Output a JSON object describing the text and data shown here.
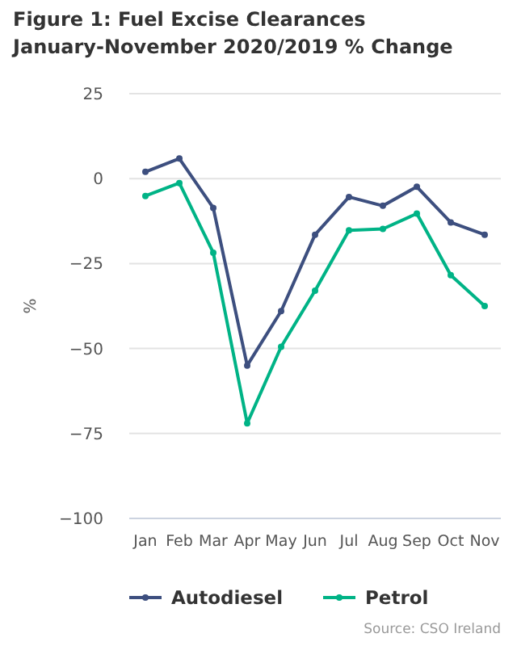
{
  "chart_data": {
    "type": "line",
    "title": "Figure 1: Fuel Excise Clearances January-November 2020/2019 % Change",
    "ylabel": "%",
    "categories": [
      "Jan",
      "Feb",
      "Mar",
      "Apr",
      "May",
      "Jun",
      "Jul",
      "Aug",
      "Sep",
      "Oct",
      "Nov"
    ],
    "series": [
      {
        "name": "Autodiesel",
        "color": "#3d4f7f",
        "values": [
          2,
          5.9,
          -8.6,
          -55,
          -39,
          -16.5,
          -5.4,
          -8,
          -2.4,
          -12.9,
          -16.5
        ]
      },
      {
        "name": "Petrol",
        "color": "#00b386",
        "values": [
          -5.1,
          -1.3,
          -21.8,
          -72,
          -49.5,
          -33,
          -15.2,
          -14.8,
          -10.3,
          -28.4,
          -37.5
        ]
      }
    ],
    "ylim": [
      -100,
      25
    ],
    "yticks": [
      {
        "value": -100,
        "label": "−100"
      },
      {
        "value": -75,
        "label": "−75"
      },
      {
        "value": -50,
        "label": "−50"
      },
      {
        "value": -25,
        "label": "−25"
      },
      0,
      25
    ],
    "grid": "y",
    "legend": "bottom",
    "marker": "circle",
    "line_style": "solid",
    "annotations": [
      "Source: CSO Ireland"
    ]
  }
}
